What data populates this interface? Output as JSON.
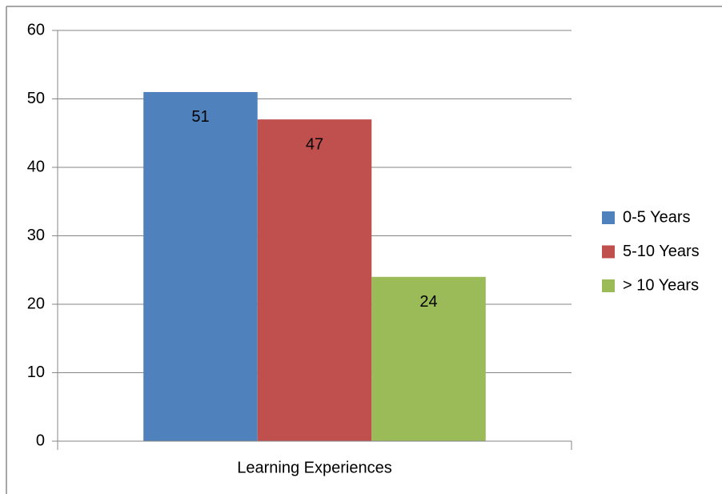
{
  "chart_data": {
    "type": "bar",
    "categories": [
      "Learning Experiences"
    ],
    "series": [
      {
        "name": "0-5 Years",
        "color": "#4f81bd",
        "values": [
          51
        ]
      },
      {
        "name": "5-10 Years",
        "color": "#c0504d",
        "values": [
          47
        ]
      },
      {
        "name": "> 10 Years",
        "color": "#9bbb59",
        "values": [
          24
        ]
      }
    ],
    "ylim": [
      0,
      60
    ],
    "yticks": [
      0,
      10,
      20,
      30,
      40,
      50,
      60
    ],
    "grid": true,
    "legend": "right"
  }
}
